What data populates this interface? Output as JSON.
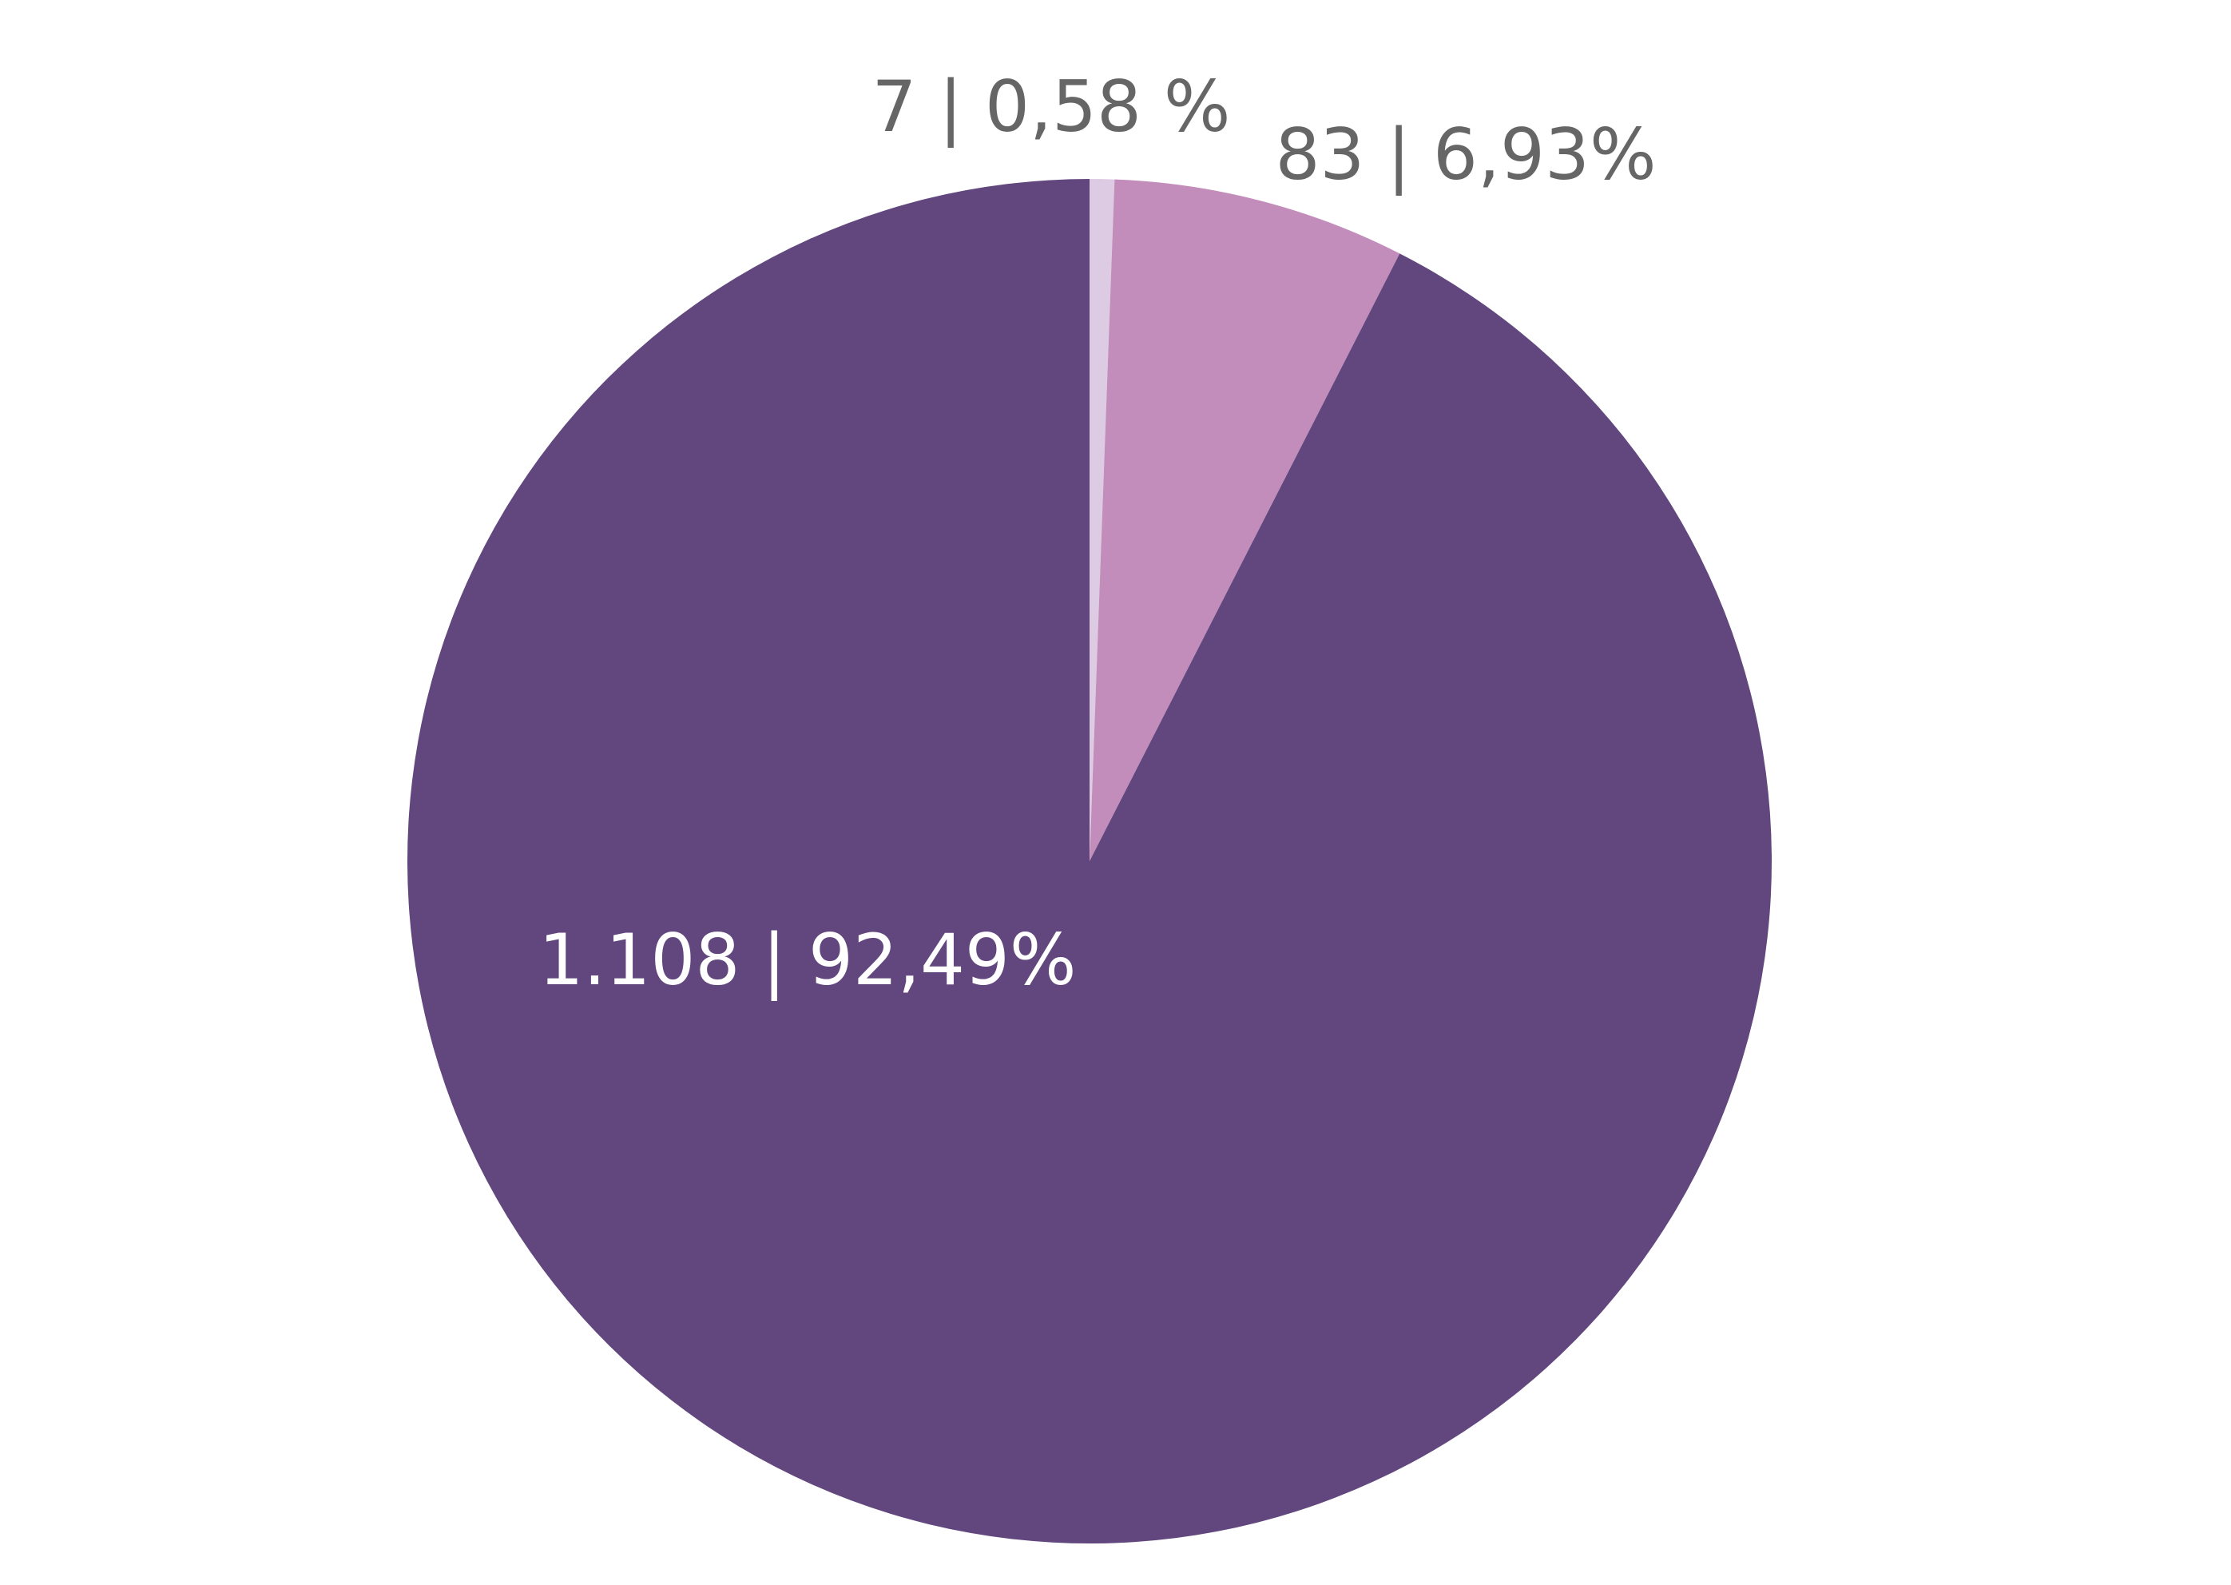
{
  "chart_data": {
    "type": "pie",
    "values": [
      7,
      83,
      1108
    ],
    "value_labels": [
      "7 | 0,58 %",
      "83 | 6,93%",
      "1.108 | 92,49%"
    ],
    "colors": [
      "#dccbe2",
      "#c38dbb",
      "#61477e"
    ]
  }
}
